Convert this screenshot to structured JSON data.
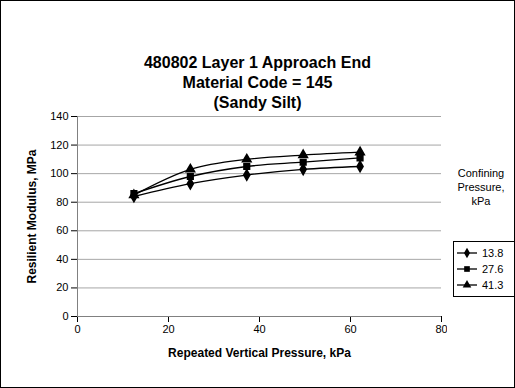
{
  "chart_data": {
    "type": "line",
    "title": [
      "480802 Layer 1 Approach End",
      "Material Code = 145",
      "(Sandy Silt)"
    ],
    "x_label": "Repeated Vertical Pressure, kPa",
    "y_label": "Resilient Modulus, MPa",
    "legend_title": "Confining Pressure, kPa",
    "legend": "right",
    "grid": true,
    "x": [
      12.4,
      24.8,
      37.2,
      49.6,
      62.1
    ],
    "xlim": [
      0,
      80
    ],
    "xticks": [
      0,
      20,
      40,
      60,
      80
    ],
    "ylim": [
      0,
      140
    ],
    "yticks": [
      0,
      20,
      40,
      60,
      80,
      100,
      120,
      140
    ],
    "series": [
      {
        "name": "13.8",
        "color": "#000000",
        "marker": "diamond",
        "line_style": "smooth",
        "values": [
          84,
          93,
          99,
          103,
          105
        ]
      },
      {
        "name": "27.6",
        "color": "#000000",
        "marker": "square",
        "line_style": "smooth",
        "values": [
          86,
          98,
          105,
          108,
          111
        ]
      },
      {
        "name": "41.3",
        "color": "#000000",
        "marker": "triangle",
        "line_style": "smooth",
        "values": [
          85,
          103,
          110,
          113,
          115
        ]
      }
    ]
  }
}
